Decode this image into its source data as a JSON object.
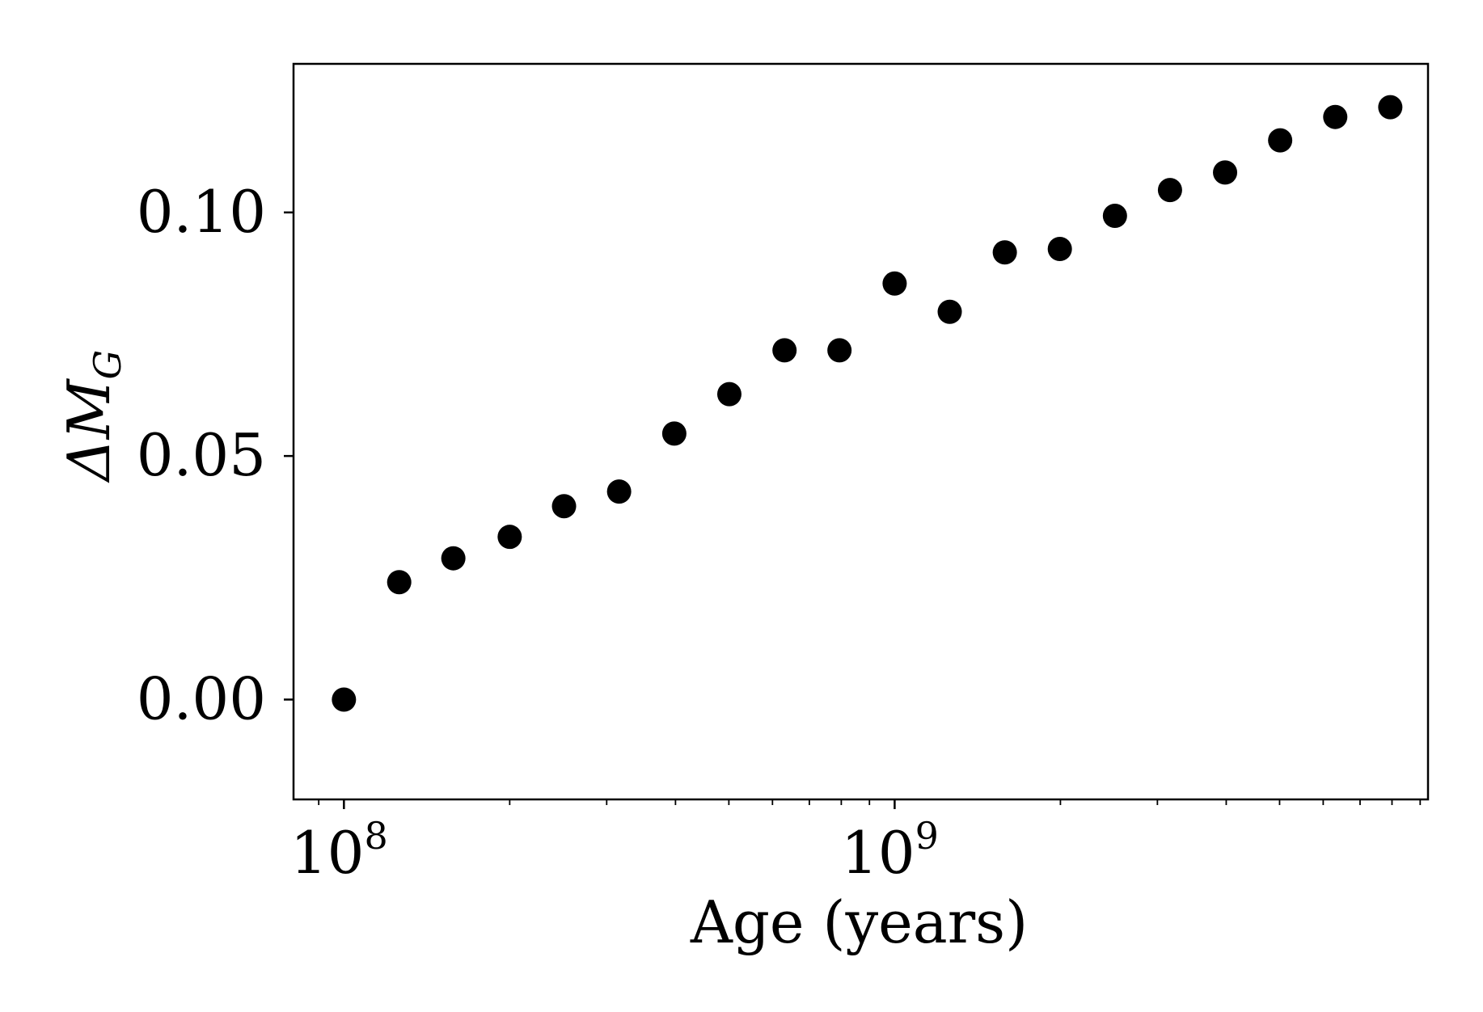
{
  "chart_data": {
    "type": "scatter",
    "xlabel": "Age (years)",
    "ylabel": {
      "symbol": "ΔM",
      "subscript": "G"
    },
    "x_scale": "log",
    "xlim": [
      81000000,
      9300000000
    ],
    "ylim": [
      -0.0205,
      0.1305
    ],
    "grid": false,
    "x_ticks": [
      {
        "value": 100000000,
        "base": "10",
        "exponent": "8"
      },
      {
        "value": 1000000000,
        "base": "10",
        "exponent": "9"
      }
    ],
    "y_ticks": [
      {
        "value": 0.0,
        "label": "0.00"
      },
      {
        "value": 0.05,
        "label": "0.05"
      },
      {
        "value": 0.1,
        "label": "0.10"
      }
    ],
    "marker_color": "#000000",
    "points": [
      {
        "x": 100000000,
        "y": 0.0
      },
      {
        "x": 126000000,
        "y": 0.0241
      },
      {
        "x": 158000000,
        "y": 0.029
      },
      {
        "x": 200000000,
        "y": 0.0334
      },
      {
        "x": 251000000,
        "y": 0.0397
      },
      {
        "x": 316000000,
        "y": 0.0427
      },
      {
        "x": 398000000,
        "y": 0.0546
      },
      {
        "x": 501000000,
        "y": 0.0627
      },
      {
        "x": 631000000,
        "y": 0.0717
      },
      {
        "x": 794000000,
        "y": 0.0717
      },
      {
        "x": 1000000000,
        "y": 0.0854
      },
      {
        "x": 1259000000,
        "y": 0.0796
      },
      {
        "x": 1585000000,
        "y": 0.0918
      },
      {
        "x": 1995000000,
        "y": 0.0925
      },
      {
        "x": 2512000000,
        "y": 0.0993
      },
      {
        "x": 3162000000,
        "y": 0.1046
      },
      {
        "x": 3981000000,
        "y": 0.1082
      },
      {
        "x": 5012000000,
        "y": 0.1148
      },
      {
        "x": 6310000000,
        "y": 0.1196
      },
      {
        "x": 7943000000,
        "y": 0.1216
      }
    ]
  }
}
